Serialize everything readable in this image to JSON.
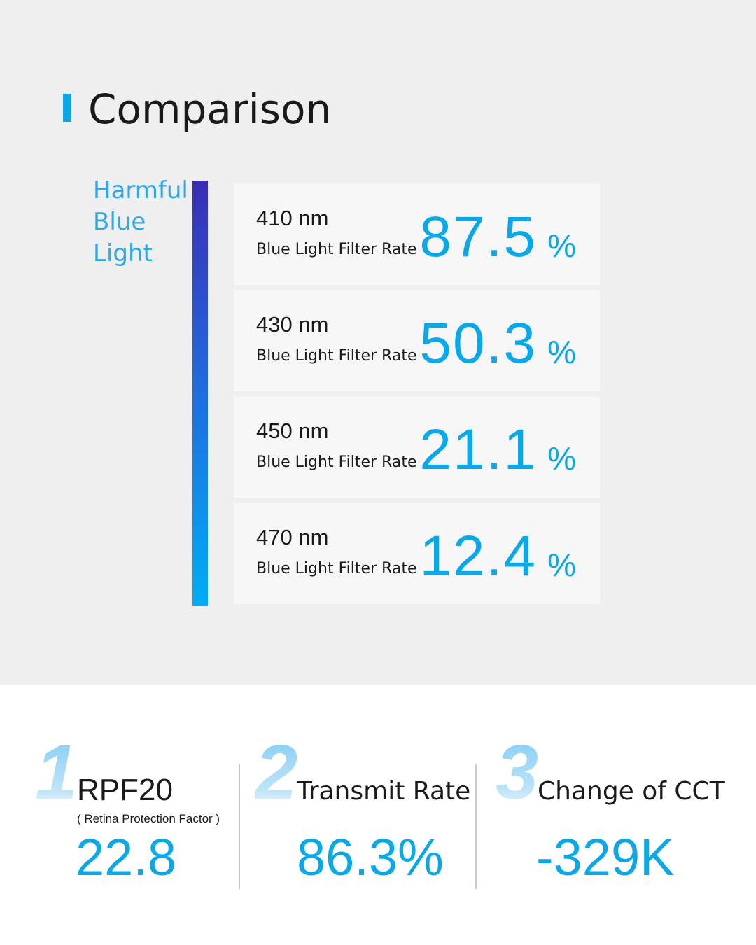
{
  "title": "Comparison",
  "side_label": [
    "Harmful",
    "Blue",
    "Light"
  ],
  "cards": [
    {
      "wavelength": "410 nm",
      "label": "Blue Light Filter Rate",
      "value": "87.5",
      "unit": "%"
    },
    {
      "wavelength": "430 nm",
      "label": "Blue Light Filter Rate",
      "value": "50.3",
      "unit": "%"
    },
    {
      "wavelength": "450 nm",
      "label": "Blue Light Filter Rate",
      "value": "21.1",
      "unit": "%"
    },
    {
      "wavelength": "470 nm",
      "label": "Blue Light Filter Rate",
      "value": "12.4",
      "unit": "%"
    }
  ],
  "stats": [
    {
      "number": "1",
      "title": "RPF20",
      "subtitle": "( Retina Protection Factor )",
      "value": "22.8"
    },
    {
      "number": "2",
      "title": "Transmit Rate",
      "value": "86.3%"
    },
    {
      "number": "3",
      "title": "Change of CCT",
      "value": "-329K"
    }
  ],
  "colors": {
    "accent": "#0aa8e8",
    "gradient_top": "#3a2db6",
    "gradient_bottom": "#00aef5"
  }
}
